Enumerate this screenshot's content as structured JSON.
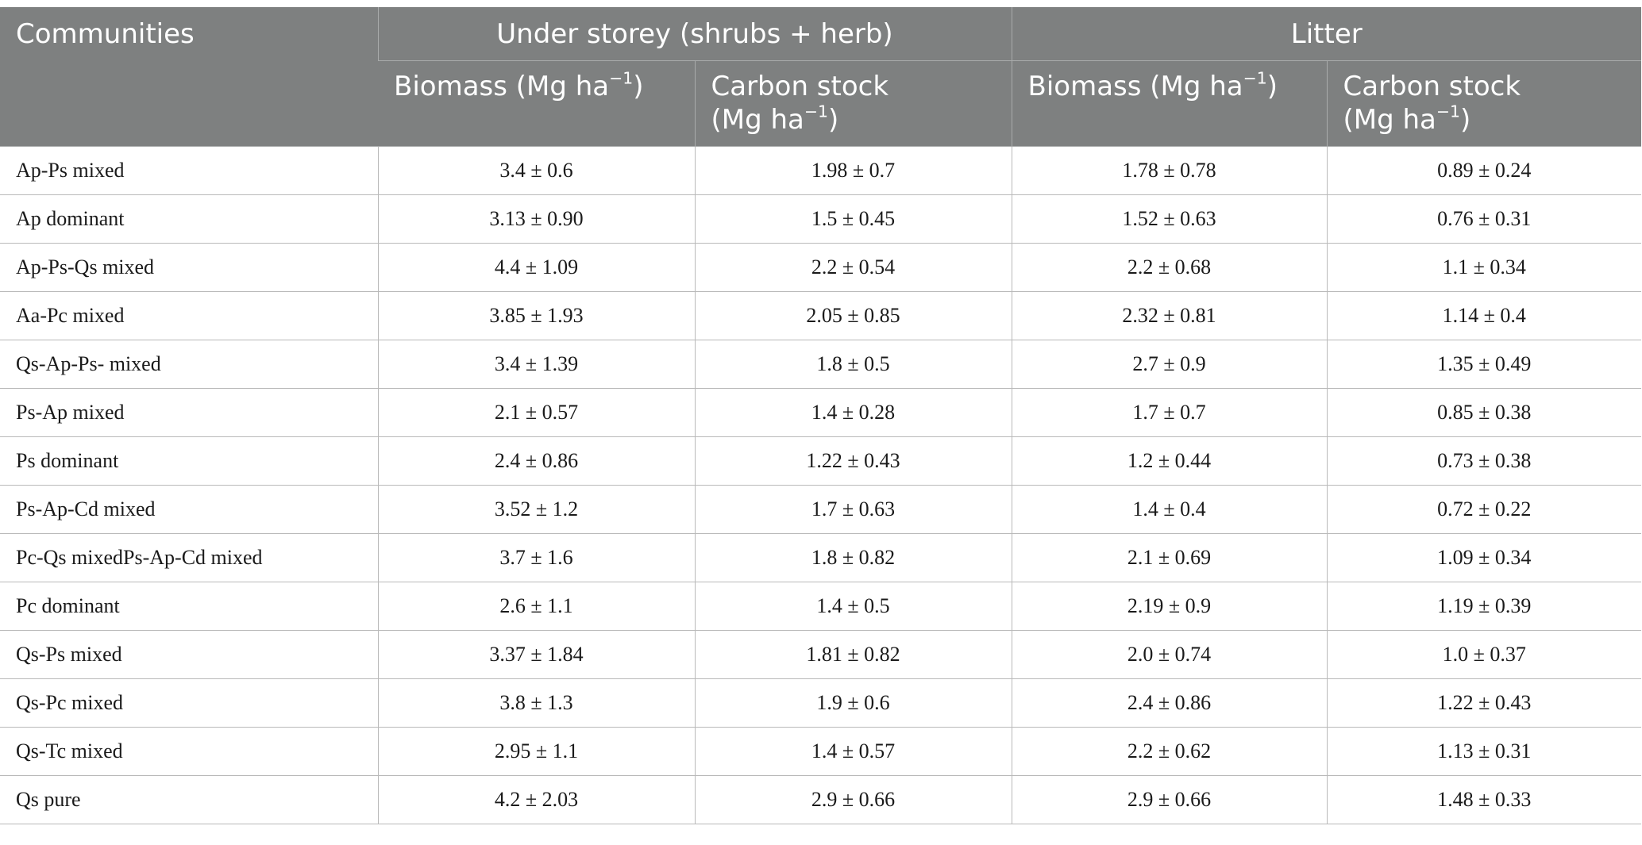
{
  "table": {
    "header": {
      "communities": "Communities",
      "group_understorey": "Under storey (shrubs + herb)",
      "group_litter": "Litter",
      "biomass_label": "Biomass (Mg ha",
      "carbon_label_line1": "Carbon stock",
      "carbon_label_line2": "(Mg ha",
      "unit_exponent": "−1",
      "close_paren": ")"
    },
    "rows": [
      {
        "community": "Ap-Ps mixed",
        "us_biomass": "3.4 ± 0.6",
        "us_carbon": "1.98 ± 0.7",
        "lit_biomass": "1.78 ± 0.78",
        "lit_carbon": "0.89 ± 0.24"
      },
      {
        "community": "Ap dominant",
        "us_biomass": "3.13 ± 0.90",
        "us_carbon": "1.5 ± 0.45",
        "lit_biomass": "1.52 ± 0.63",
        "lit_carbon": "0.76 ± 0.31"
      },
      {
        "community": "Ap-Ps-Qs mixed",
        "us_biomass": "4.4 ± 1.09",
        "us_carbon": "2.2 ± 0.54",
        "lit_biomass": "2.2 ± 0.68",
        "lit_carbon": "1.1 ± 0.34"
      },
      {
        "community": "Aa-Pc mixed",
        "us_biomass": "3.85 ± 1.93",
        "us_carbon": "2.05 ± 0.85",
        "lit_biomass": "2.32 ± 0.81",
        "lit_carbon": "1.14 ± 0.4"
      },
      {
        "community": "Qs-Ap-Ps- mixed",
        "us_biomass": "3.4 ± 1.39",
        "us_carbon": "1.8 ± 0.5",
        "lit_biomass": "2.7 ± 0.9",
        "lit_carbon": "1.35 ± 0.49"
      },
      {
        "community": "Ps-Ap mixed",
        "us_biomass": "2.1 ± 0.57",
        "us_carbon": "1.4 ± 0.28",
        "lit_biomass": "1.7 ± 0.7",
        "lit_carbon": "0.85 ± 0.38"
      },
      {
        "community": "Ps dominant",
        "us_biomass": "2.4 ± 0.86",
        "us_carbon": "1.22 ± 0.43",
        "lit_biomass": "1.2 ± 0.44",
        "lit_carbon": "0.73 ± 0.38"
      },
      {
        "community": "Ps-Ap-Cd mixed",
        "us_biomass": "3.52 ± 1.2",
        "us_carbon": "1.7 ± 0.63",
        "lit_biomass": "1.4 ± 0.4",
        "lit_carbon": "0.72 ± 0.22"
      },
      {
        "community": "Pc-Qs mixedPs-Ap-Cd mixed",
        "us_biomass": "3.7 ± 1.6",
        "us_carbon": "1.8 ± 0.82",
        "lit_biomass": "2.1 ± 0.69",
        "lit_carbon": "1.09 ± 0.34"
      },
      {
        "community": "Pc dominant",
        "us_biomass": "2.6 ± 1.1",
        "us_carbon": "1.4 ± 0.5",
        "lit_biomass": "2.19 ± 0.9",
        "lit_carbon": "1.19 ± 0.39"
      },
      {
        "community": "Qs-Ps mixed",
        "us_biomass": "3.37 ± 1.84",
        "us_carbon": "1.81 ± 0.82",
        "lit_biomass": "2.0 ± 0.74",
        "lit_carbon": "1.0 ± 0.37"
      },
      {
        "community": "Qs-Pc mixed",
        "us_biomass": "3.8 ± 1.3",
        "us_carbon": "1.9 ± 0.6",
        "lit_biomass": "2.4 ± 0.86",
        "lit_carbon": "1.22 ± 0.43"
      },
      {
        "community": "Qs-Tc mixed",
        "us_biomass": "2.95 ± 1.1",
        "us_carbon": "1.4 ± 0.57",
        "lit_biomass": "2.2 ± 0.62",
        "lit_carbon": "1.13 ± 0.31"
      },
      {
        "community": "Qs pure",
        "us_biomass": "4.2 ± 2.03",
        "us_carbon": "2.9 ± 0.66",
        "lit_biomass": "2.9 ± 0.66",
        "lit_carbon": "1.48 ± 0.33"
      }
    ]
  },
  "colors": {
    "header_background": "#7e8080",
    "header_text": "#ffffff",
    "grid_lines": "#b9b9b9",
    "body_text": "#1a1a1a"
  }
}
